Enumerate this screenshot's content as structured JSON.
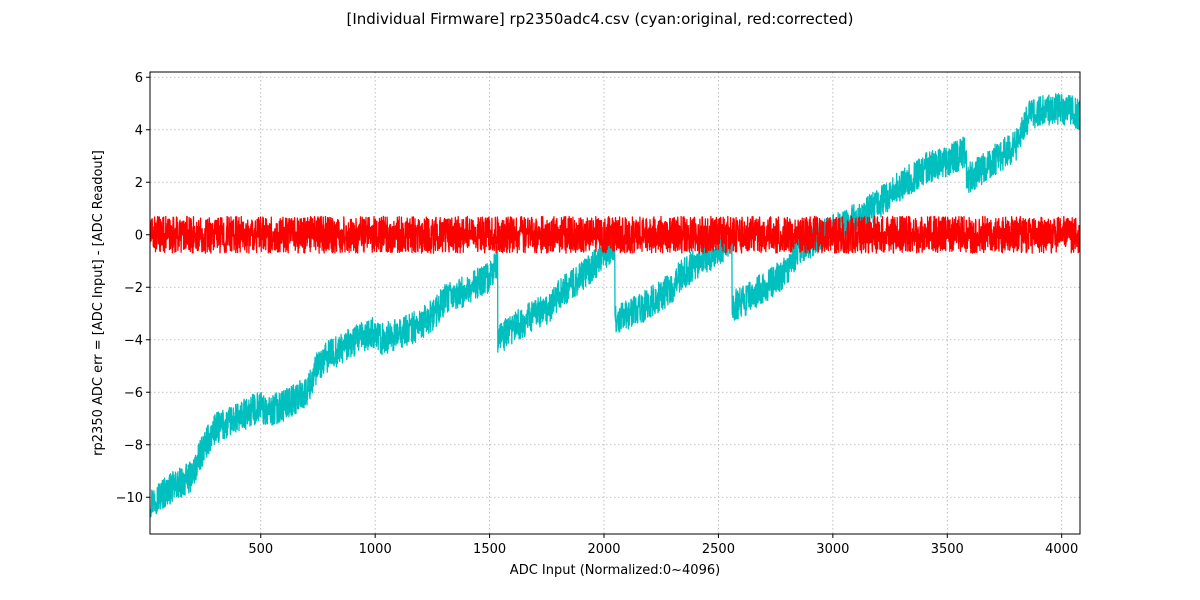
{
  "chart_data": {
    "type": "line",
    "title": "[Individual Firmware] rp2350adc4.csv (cyan:original, red:corrected)",
    "xlabel": "ADC Input (Normalized:0~4096)",
    "ylabel": "rp2350 ADC err = [ADC Input] - [ADC Readout]",
    "xlim": [
      16,
      4080
    ],
    "ylim": [
      -11.4,
      6.2
    ],
    "xticks": [
      500,
      1000,
      1500,
      2000,
      2500,
      3000,
      3500,
      4000
    ],
    "yticks": [
      -10,
      -8,
      -6,
      -4,
      -2,
      0,
      2,
      4,
      6
    ],
    "grid": true,
    "colors": {
      "original": "#00bfbf",
      "corrected": "#ff0000",
      "frame": "#000000",
      "grid": "#b0b0b0"
    },
    "series": [
      {
        "key": "original",
        "color": "#00bfbf",
        "noise_amplitude": 0.6,
        "trend": {
          "x": [
            16,
            100,
            200,
            250,
            300,
            400,
            500,
            520,
            600,
            700,
            750,
            800,
            900,
            1000,
            1020,
            1100,
            1200,
            1260,
            1300,
            1400,
            1500,
            1535,
            1536,
            1600,
            1700,
            1760,
            1800,
            1900,
            2000,
            2047,
            2048,
            2100,
            2200,
            2300,
            2330,
            2400,
            2500,
            2559,
            2560,
            2600,
            2700,
            2800,
            2850,
            2900,
            3000,
            3060,
            3100,
            3200,
            3300,
            3400,
            3500,
            3583,
            3584,
            3600,
            3700,
            3800,
            3840,
            3860,
            3900,
            4000,
            4080
          ],
          "y": [
            -10.2,
            -9.7,
            -9.2,
            -8.1,
            -7.4,
            -7.0,
            -6.5,
            -6.8,
            -6.5,
            -6.0,
            -5.0,
            -4.6,
            -4.1,
            -3.7,
            -4.0,
            -3.8,
            -3.4,
            -3.0,
            -2.5,
            -2.1,
            -1.6,
            -1.0,
            -4.0,
            -3.6,
            -3.0,
            -2.8,
            -2.3,
            -1.6,
            -0.8,
            -0.3,
            -3.3,
            -3.1,
            -2.6,
            -2.0,
            -1.6,
            -1.1,
            -0.6,
            -0.2,
            -2.7,
            -2.6,
            -2.0,
            -1.4,
            -0.5,
            -0.3,
            0.2,
            0.5,
            0.6,
            1.2,
            1.9,
            2.5,
            2.8,
            3.2,
            2.0,
            2.2,
            2.8,
            3.4,
            4.2,
            4.6,
            4.7,
            4.8,
            4.6
          ]
        }
      },
      {
        "key": "corrected",
        "color": "#ff0000",
        "noise_amplitude": 0.7,
        "trend": {
          "x": [
            16,
            4080
          ],
          "y": [
            0.0,
            0.0
          ]
        }
      }
    ]
  }
}
